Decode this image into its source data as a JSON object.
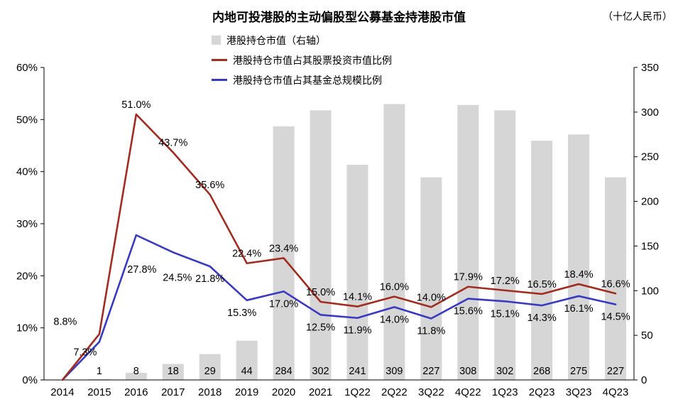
{
  "title": "内地可投港股的主动偏股型公募基金持港股市值",
  "unit_label": "（十亿人民币）",
  "chart_data": {
    "type": "bar+line",
    "title": "内地可投港股的主动偏股型公募基金持港股市值",
    "right_axis_unit": "十亿人民币",
    "legend_position": "top-center",
    "grid": false,
    "categories": [
      "2014",
      "2015",
      "2016",
      "2017",
      "2018",
      "2019",
      "2020",
      "2021",
      "1Q22",
      "2Q22",
      "3Q22",
      "4Q22",
      "1Q23",
      "2Q23",
      "3Q23",
      "4Q23"
    ],
    "left_axis": {
      "min": 0,
      "max": 60,
      "tick_labels": [
        "0%",
        "10%",
        "20%",
        "30%",
        "40%",
        "50%",
        "60%"
      ]
    },
    "right_axis": {
      "min": 0,
      "max": 350,
      "tick_labels": [
        "0",
        "50",
        "100",
        "150",
        "200",
        "250",
        "300",
        "350"
      ]
    },
    "series": [
      {
        "name": "港股持仓市值（右轴）",
        "type": "bar",
        "axis": "right",
        "color": "#d6d6d6",
        "values": [
          0,
          1,
          8,
          18,
          29,
          44,
          284,
          302,
          241,
          309,
          227,
          308,
          302,
          268,
          275,
          227
        ],
        "labels": [
          "",
          "1",
          "8",
          "18",
          "29",
          "44",
          "284",
          "302",
          "241",
          "309",
          "227",
          "308",
          "302",
          "268",
          "275",
          "227"
        ]
      },
      {
        "name": "港股持仓市值占其股票投资市值比例",
        "type": "line",
        "axis": "left",
        "color": "#a12c22",
        "values": [
          0,
          8.8,
          51.0,
          43.7,
          35.6,
          22.4,
          23.4,
          15.0,
          14.1,
          16.0,
          14.0,
          17.9,
          17.2,
          16.5,
          18.4,
          16.6
        ],
        "labels": [
          "",
          "8.8%",
          "51.0%",
          "43.7%",
          "35.6%",
          "22.4%",
          "23.4%",
          "15.0%",
          "14.1%",
          "16.0%",
          "14.0%",
          "17.9%",
          "17.2%",
          "16.5%",
          "18.4%",
          "16.6%"
        ]
      },
      {
        "name": "港股持仓市值占其基金总规模比例",
        "type": "line",
        "axis": "left",
        "color": "#3a3ac0",
        "values": [
          0,
          7.3,
          27.8,
          24.5,
          21.8,
          15.3,
          17.0,
          12.5,
          11.9,
          14.0,
          11.8,
          15.6,
          15.1,
          14.3,
          16.1,
          14.5
        ],
        "labels": [
          "",
          "7.3%",
          "27.8%",
          "24.5%",
          "21.8%",
          "15.3%",
          "17.0%",
          "12.5%",
          "11.9%",
          "14.0%",
          "11.8%",
          "15.6%",
          "15.1%",
          "14.3%",
          "16.1%",
          "14.5%"
        ]
      }
    ]
  }
}
